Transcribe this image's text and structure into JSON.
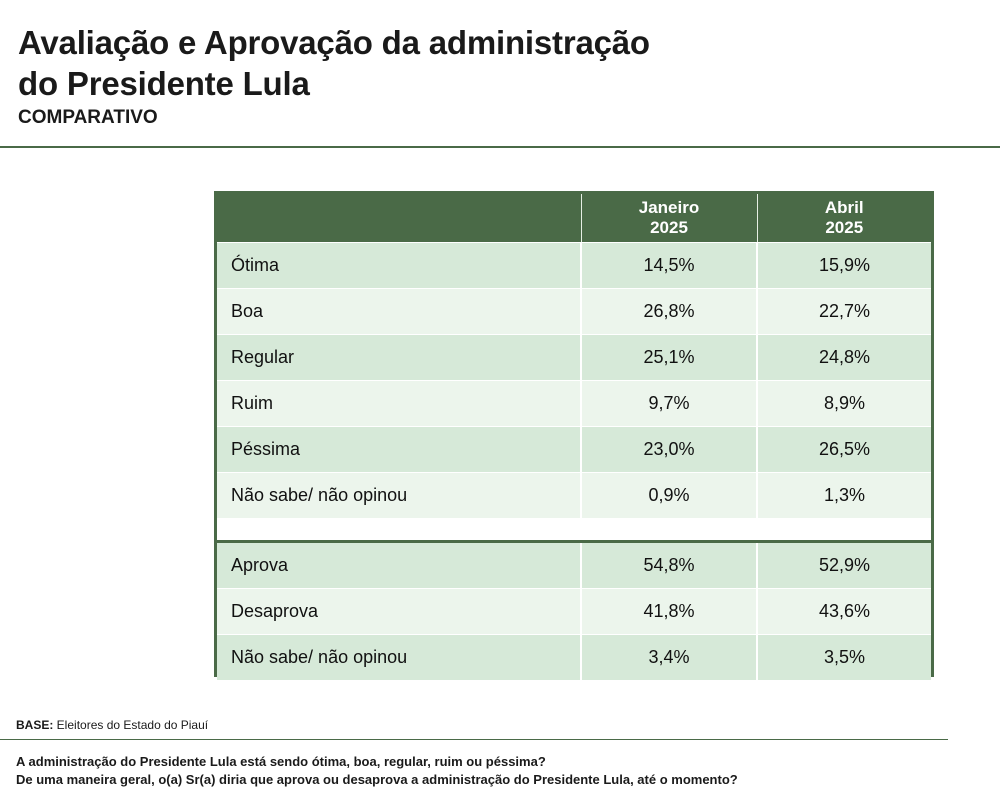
{
  "header": {
    "title_line1": "Avaliação e Aprovação da administração",
    "title_line2": "do Presidente Lula",
    "subtitle": "COMPARATIVO"
  },
  "table": {
    "columns": [
      {
        "line1": "Janeiro",
        "line2": "2025"
      },
      {
        "line1": "Abril",
        "line2": "2025"
      }
    ],
    "evaluation_rows": [
      {
        "label": "Ótima",
        "jan": "14,5%",
        "abr": "15,9%"
      },
      {
        "label": "Boa",
        "jan": "26,8%",
        "abr": "22,7%"
      },
      {
        "label": "Regular",
        "jan": "25,1%",
        "abr": "24,8%"
      },
      {
        "label": "Ruim",
        "jan": "9,7%",
        "abr": "8,9%"
      },
      {
        "label": "Péssima",
        "jan": "23,0%",
        "abr": "26,5%"
      },
      {
        "label": "Não sabe/ não opinou",
        "jan": "0,9%",
        "abr": "1,3%"
      }
    ],
    "approval_rows": [
      {
        "label": "Aprova",
        "jan": "54,8%",
        "abr": "52,9%"
      },
      {
        "label": "Desaprova",
        "jan": "41,8%",
        "abr": "43,6%"
      },
      {
        "label": "Não sabe/ não opinou",
        "jan": "3,4%",
        "abr": "3,5%"
      }
    ]
  },
  "footer": {
    "base_label": "BASE:",
    "base_text": " Eleitores do Estado do Piauí",
    "question1": "A administração do Presidente Lula está sendo ótima, boa, regular, ruim ou péssima?",
    "question2": "De uma maneira geral, o(a) Sr(a) diria que aprova ou desaprova a administração do Presidente Lula, até o momento?"
  },
  "colors": {
    "header_green": "#4a6a47",
    "row_dark": "#d6e9d8",
    "row_light": "#ecf5ec"
  }
}
